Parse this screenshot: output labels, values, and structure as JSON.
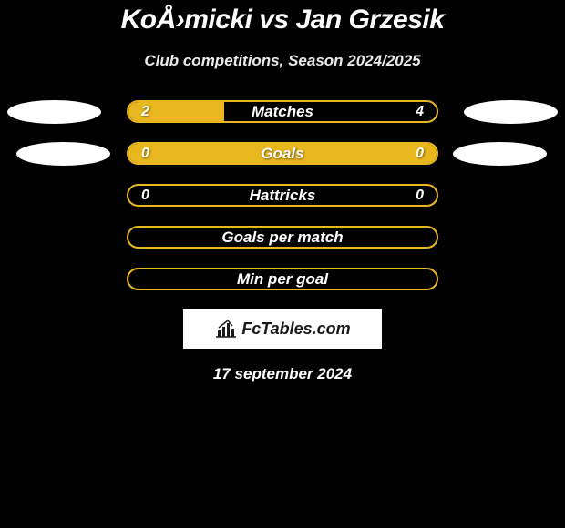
{
  "title": "KoÅ›micki vs Jan Grzesik",
  "subtitle": "Club competitions, Season 2024/2025",
  "date": "17 september 2024",
  "logo_text": "FcTables.com",
  "colors": {
    "background": "#000000",
    "bar_border": "#e8b61e",
    "bar_fill": "#e8b61e",
    "oval": "#ffffff",
    "text": "#ffffff",
    "subtitle": "#eaeaea"
  },
  "stats": [
    {
      "label": "Matches",
      "left_value": "2",
      "right_value": "4",
      "left_fill_pct": 31,
      "right_fill_pct": 0,
      "show_ovals": true,
      "oval_offset": 0
    },
    {
      "label": "Goals",
      "left_value": "0",
      "right_value": "0",
      "left_fill_pct": 100,
      "right_fill_pct": 0,
      "show_ovals": true,
      "oval_offset": 10
    },
    {
      "label": "Hattricks",
      "left_value": "0",
      "right_value": "0",
      "left_fill_pct": 0,
      "right_fill_pct": 0,
      "show_ovals": false
    },
    {
      "label": "Goals per match",
      "left_value": "",
      "right_value": "",
      "left_fill_pct": 0,
      "right_fill_pct": 0,
      "show_ovals": false
    },
    {
      "label": "Min per goal",
      "left_value": "",
      "right_value": "",
      "left_fill_pct": 0,
      "right_fill_pct": 0,
      "show_ovals": false
    }
  ]
}
